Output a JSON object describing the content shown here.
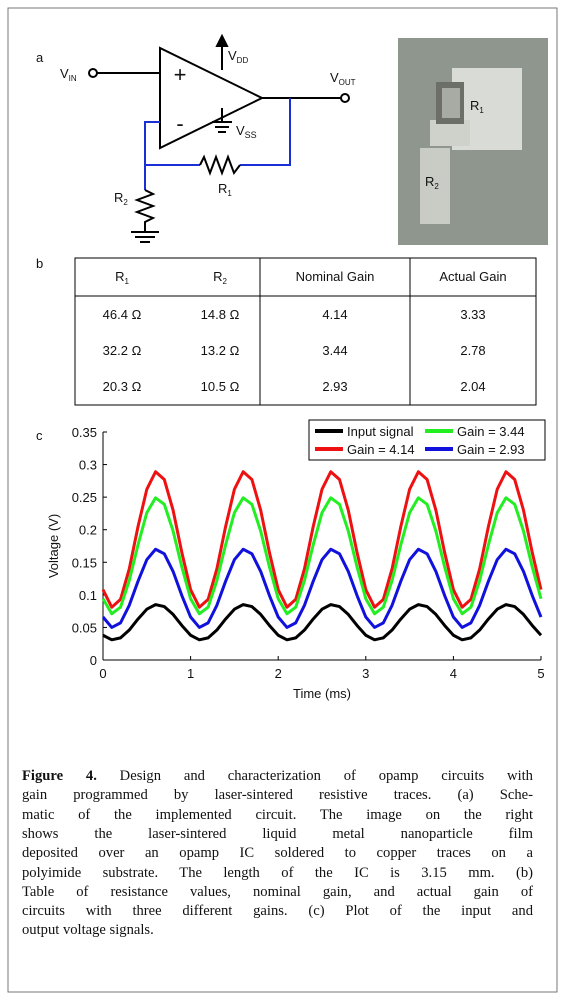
{
  "panel_labels": {
    "a": "a",
    "b": "b",
    "c": "c"
  },
  "schematic": {
    "vin": {
      "main": "V",
      "sub": "IN"
    },
    "vdd": {
      "main": "V",
      "sub": "DD"
    },
    "vss": {
      "main": "V",
      "sub": "SS"
    },
    "vout": {
      "main": "V",
      "sub": "OUT"
    },
    "plus": "+",
    "minus": "-",
    "r1": {
      "main": "R",
      "sub": "1"
    },
    "r2": {
      "main": "R",
      "sub": "2"
    }
  },
  "photo": {
    "r1": {
      "main": "R",
      "sub": "1"
    },
    "r2": {
      "main": "R",
      "sub": "2"
    }
  },
  "table": {
    "header": [
      {
        "main": "R",
        "sub": "1"
      },
      {
        "main": "R",
        "sub": "2"
      },
      {
        "main": "Nominal Gain"
      },
      {
        "main": "Actual Gain"
      }
    ],
    "rows": [
      [
        "46.4 Ω",
        "14.8 Ω",
        "4.14",
        "3.33"
      ],
      [
        "32.2 Ω",
        "13.2 Ω",
        "3.44",
        "2.78"
      ],
      [
        "20.3 Ω",
        "10.5 Ω",
        "2.93",
        "2.04"
      ]
    ]
  },
  "chart_data": {
    "type": "line",
    "xlabel": "Time (ms)",
    "ylabel": "Voltage (V)",
    "xlim": [
      0,
      5
    ],
    "ylim": [
      0,
      0.35
    ],
    "xticks": [
      0,
      1,
      2,
      3,
      4,
      5
    ],
    "yticks": [
      0,
      0.05,
      0.1,
      0.15,
      0.2,
      0.25,
      0.3,
      0.35
    ],
    "legend": "upper right",
    "x": [
      0,
      0.1,
      0.2,
      0.3,
      0.4,
      0.5,
      0.6,
      0.7,
      0.8,
      0.9,
      1,
      1.1,
      1.2,
      1.3,
      1.4,
      1.5,
      1.6,
      1.7,
      1.8,
      1.9,
      2,
      2.1,
      2.2,
      2.3,
      2.4,
      2.5,
      2.6,
      2.7,
      2.8,
      2.9,
      3,
      3.1,
      3.2,
      3.3,
      3.4,
      3.5,
      3.6,
      3.7,
      3.8,
      3.9,
      4,
      4.1,
      4.2,
      4.3,
      4.4,
      4.5,
      4.6,
      4.7,
      4.8,
      4.9,
      5
    ],
    "series": [
      {
        "name": "Input signal",
        "color": "#000000",
        "values": [
          0.038,
          0.031,
          0.034,
          0.046,
          0.063,
          0.078,
          0.085,
          0.082,
          0.07,
          0.053,
          0.038,
          0.031,
          0.034,
          0.046,
          0.063,
          0.078,
          0.085,
          0.082,
          0.07,
          0.053,
          0.038,
          0.031,
          0.034,
          0.046,
          0.063,
          0.078,
          0.085,
          0.082,
          0.07,
          0.053,
          0.038,
          0.031,
          0.034,
          0.046,
          0.063,
          0.078,
          0.085,
          0.082,
          0.07,
          0.053,
          0.038,
          0.031,
          0.034,
          0.046,
          0.063,
          0.078,
          0.085,
          0.082,
          0.07,
          0.053,
          0.038
        ]
      },
      {
        "name": "Gain = 4.14",
        "color": "#ee1111",
        "values": [
          0.108,
          0.081,
          0.093,
          0.14,
          0.205,
          0.262,
          0.289,
          0.277,
          0.23,
          0.165,
          0.108,
          0.081,
          0.093,
          0.14,
          0.205,
          0.262,
          0.289,
          0.277,
          0.23,
          0.165,
          0.108,
          0.081,
          0.093,
          0.14,
          0.205,
          0.262,
          0.289,
          0.277,
          0.23,
          0.165,
          0.108,
          0.081,
          0.093,
          0.14,
          0.205,
          0.262,
          0.289,
          0.277,
          0.23,
          0.165,
          0.108,
          0.081,
          0.093,
          0.14,
          0.205,
          0.262,
          0.289,
          0.277,
          0.23,
          0.165,
          0.108
        ]
      },
      {
        "name": "Gain = 3.44",
        "color": "#22ee22",
        "values": [
          0.094,
          0.071,
          0.081,
          0.122,
          0.177,
          0.226,
          0.249,
          0.239,
          0.198,
          0.143,
          0.094,
          0.071,
          0.081,
          0.122,
          0.177,
          0.226,
          0.249,
          0.239,
          0.198,
          0.143,
          0.094,
          0.071,
          0.081,
          0.122,
          0.177,
          0.226,
          0.249,
          0.239,
          0.198,
          0.143,
          0.094,
          0.071,
          0.081,
          0.122,
          0.177,
          0.226,
          0.249,
          0.239,
          0.198,
          0.143,
          0.094,
          0.071,
          0.081,
          0.122,
          0.177,
          0.226,
          0.249,
          0.239,
          0.198,
          0.143,
          0.094
        ]
      },
      {
        "name": "Gain = 2.93",
        "color": "#1111dd",
        "values": [
          0.066,
          0.05,
          0.057,
          0.084,
          0.121,
          0.154,
          0.17,
          0.163,
          0.136,
          0.099,
          0.066,
          0.05,
          0.057,
          0.084,
          0.121,
          0.154,
          0.17,
          0.163,
          0.136,
          0.099,
          0.066,
          0.05,
          0.057,
          0.084,
          0.121,
          0.154,
          0.17,
          0.163,
          0.136,
          0.099,
          0.066,
          0.05,
          0.057,
          0.084,
          0.121,
          0.154,
          0.17,
          0.163,
          0.136,
          0.099,
          0.066,
          0.05,
          0.057,
          0.084,
          0.121,
          0.154,
          0.17,
          0.163,
          0.136,
          0.099,
          0.066
        ]
      }
    ]
  },
  "caption": {
    "label": "Figure 4.",
    "lines": [
      "Design and characterization of opamp circuits with",
      "gain programmed by laser-sintered resistive traces. (a) Sche-",
      "matic of the implemented circuit. The image on the right",
      "shows the laser-sintered liquid metal nanoparticle film",
      "deposited over an opamp IC soldered to copper traces on a",
      "polyimide substrate. The length of the IC is 3.15 mm. (b)",
      "Table of resistance values, nominal gain, and actual gain of",
      "circuits with three different gains. (c) Plot of the input and",
      "output voltage signals."
    ]
  }
}
